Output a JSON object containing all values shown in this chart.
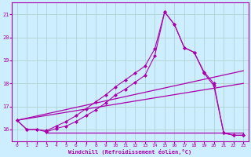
{
  "background_color": "#cceeff",
  "grid_color": "#aacccc",
  "line_color": "#aa00aa",
  "xlabel": "Windchill (Refroidissement éolien,°C)",
  "xlim": [
    -0.5,
    23.5
  ],
  "ylim": [
    15.5,
    21.5
  ],
  "yticks": [
    16,
    17,
    18,
    19,
    20,
    21
  ],
  "xticks": [
    0,
    1,
    2,
    3,
    4,
    5,
    6,
    7,
    8,
    9,
    10,
    11,
    12,
    13,
    14,
    15,
    16,
    17,
    18,
    19,
    20,
    21,
    22,
    23
  ],
  "lines": [
    {
      "x": [
        0,
        1,
        2,
        3,
        4,
        5,
        6,
        7,
        8,
        9,
        10,
        11,
        12,
        13,
        14,
        15,
        16,
        17,
        18,
        19,
        20,
        21,
        22,
        23
      ],
      "y": [
        16.4,
        16.0,
        16.0,
        15.9,
        16.05,
        16.15,
        16.35,
        16.6,
        16.85,
        17.15,
        17.5,
        17.75,
        18.05,
        18.35,
        19.2,
        21.1,
        20.55,
        19.55,
        19.35,
        18.45,
        17.9,
        15.85,
        15.75,
        15.75
      ],
      "marker": "D",
      "markersize": 2.0,
      "linewidth": 0.8
    },
    {
      "x": [
        0,
        1,
        2,
        3,
        4,
        5,
        6,
        7,
        8,
        9,
        10,
        11,
        12,
        13,
        14,
        15,
        16,
        17,
        18,
        19,
        20,
        21,
        22,
        23
      ],
      "y": [
        16.4,
        16.0,
        16.0,
        15.95,
        16.15,
        16.35,
        16.6,
        16.9,
        17.2,
        17.5,
        17.85,
        18.15,
        18.45,
        18.75,
        19.5,
        21.1,
        20.55,
        19.55,
        19.35,
        18.5,
        18.0,
        15.85,
        15.75,
        15.75
      ],
      "marker": "D",
      "markersize": 2.0,
      "linewidth": 0.8
    },
    {
      "x": [
        0,
        23
      ],
      "y": [
        16.4,
        18.55
      ],
      "marker": null,
      "markersize": 0,
      "linewidth": 0.9
    },
    {
      "x": [
        0,
        23
      ],
      "y": [
        16.4,
        18.0
      ],
      "marker": null,
      "markersize": 0,
      "linewidth": 0.9
    },
    {
      "x": [
        3,
        23
      ],
      "y": [
        15.85,
        15.85
      ],
      "marker": null,
      "markersize": 0,
      "linewidth": 0.9
    }
  ]
}
